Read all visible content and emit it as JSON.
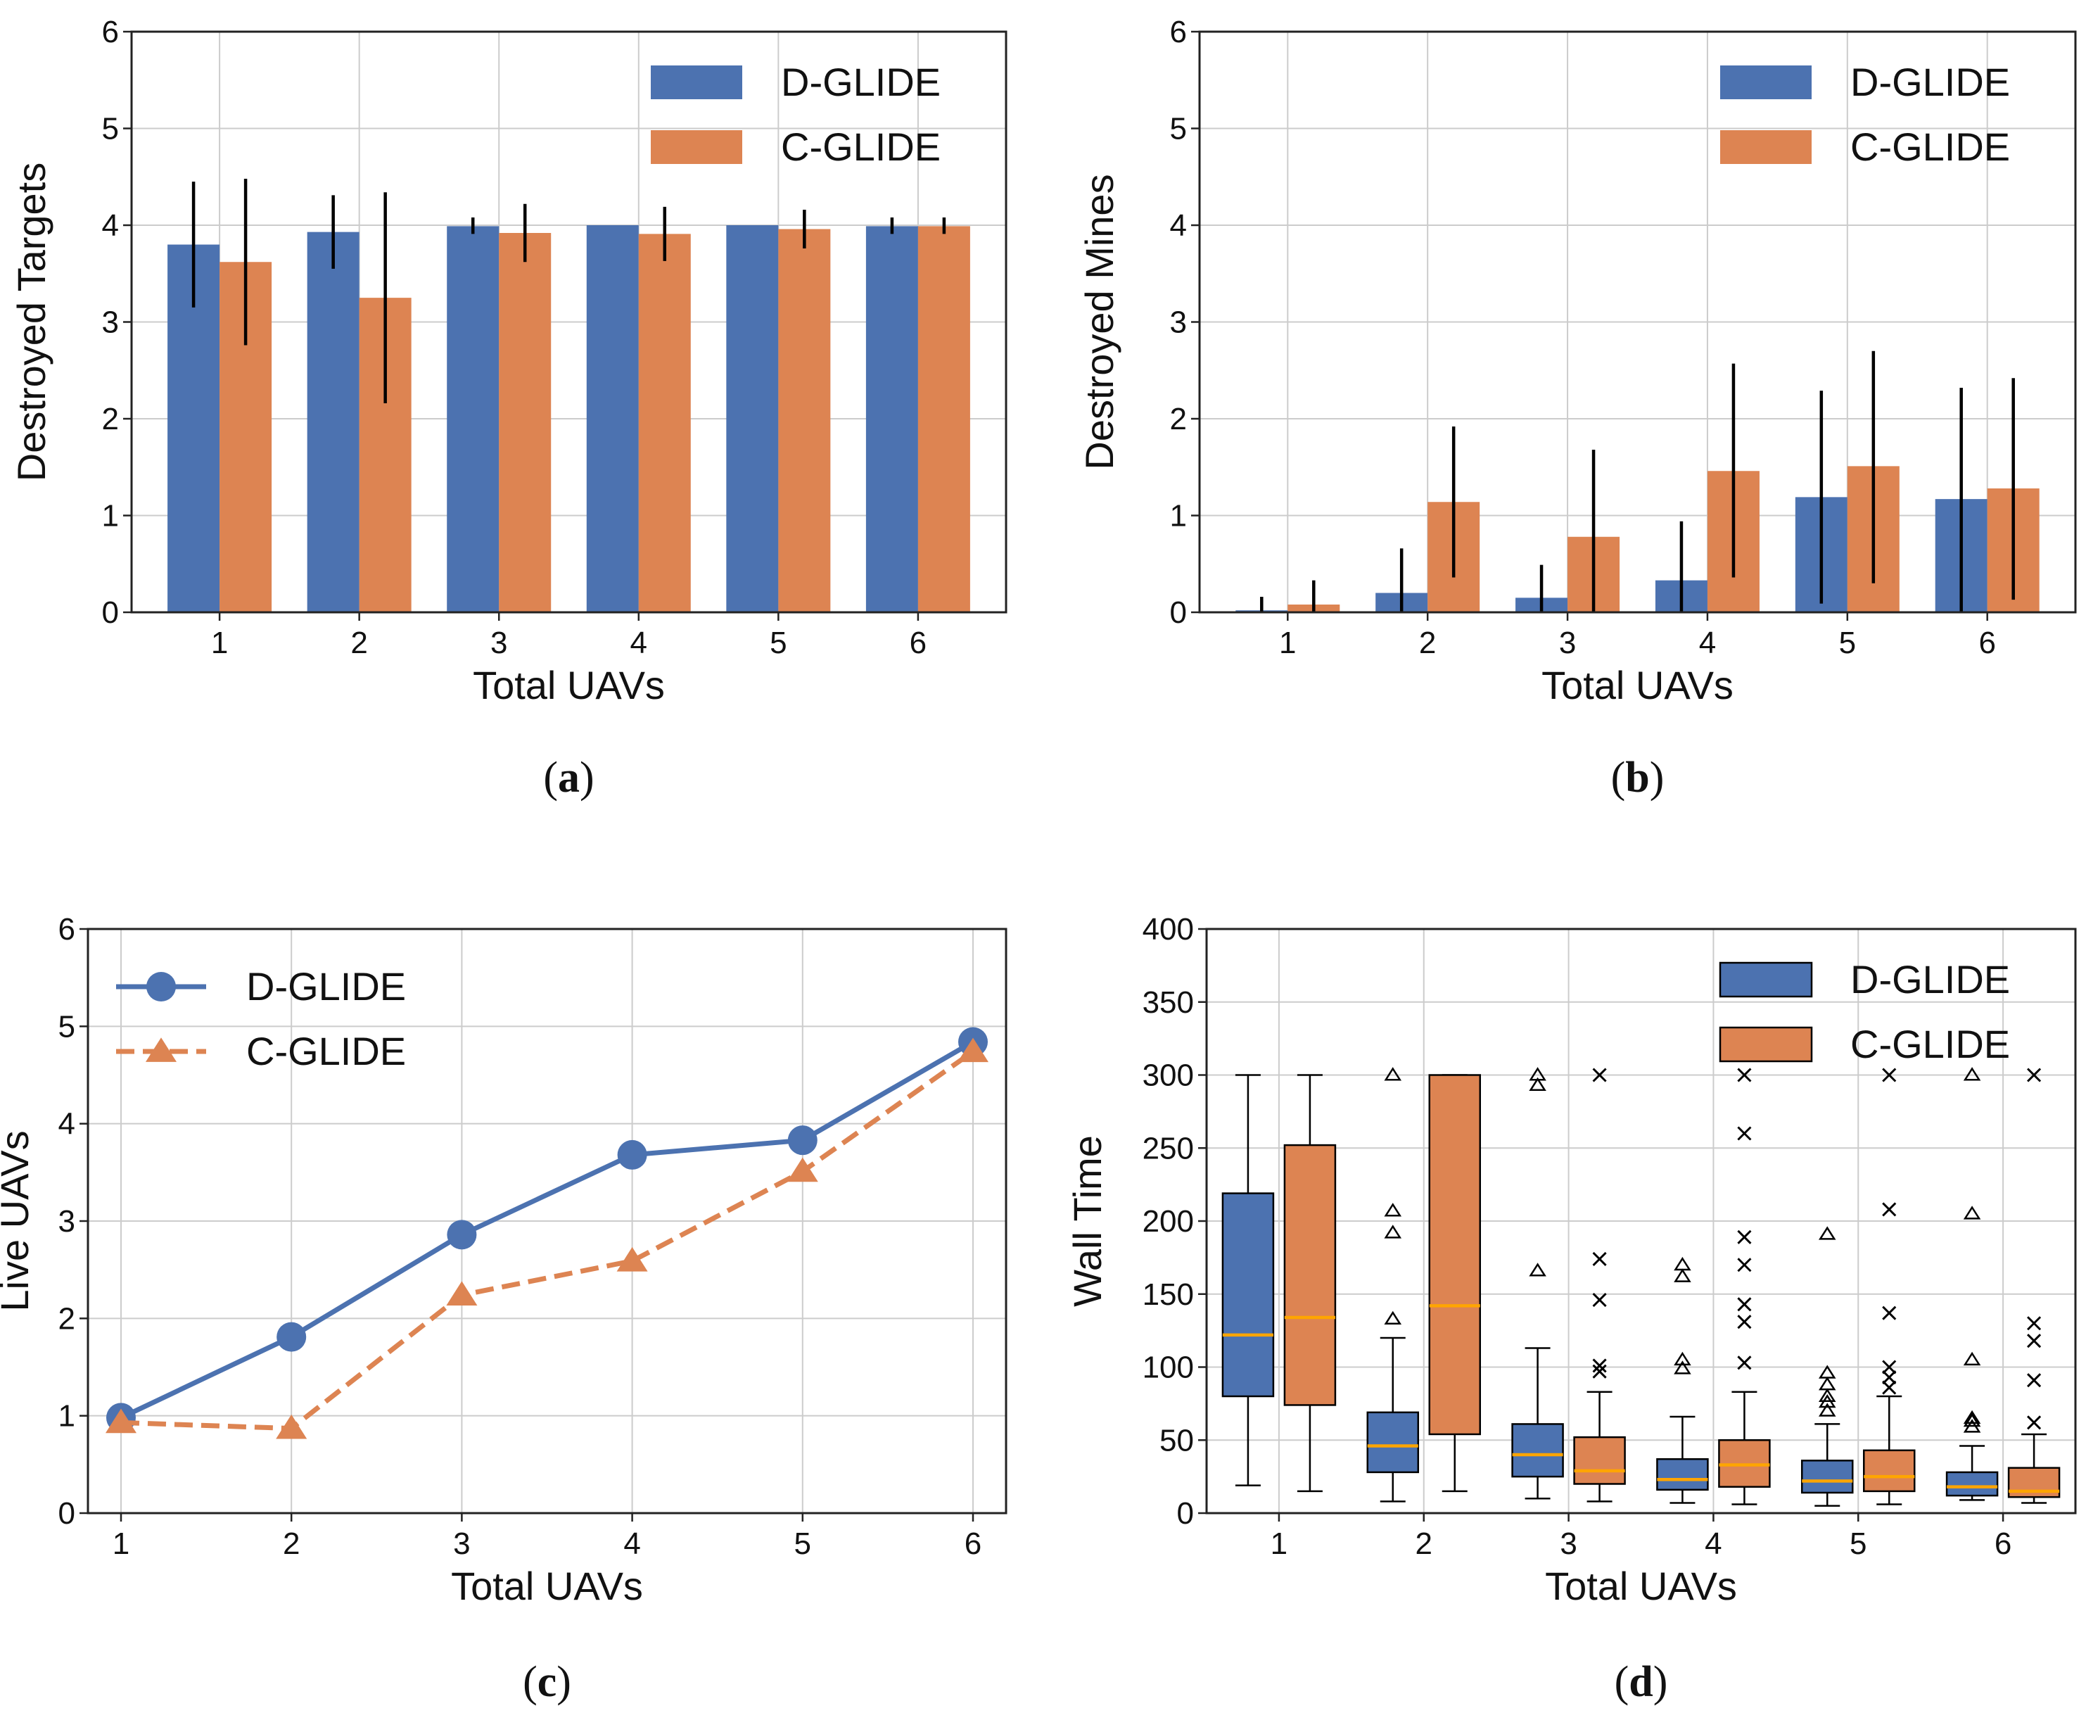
{
  "colors": {
    "dglide": "#4c72b0",
    "cglide": "#dd8452",
    "median": "#ffa500",
    "grid": "#cccccc",
    "axis": "#222222",
    "errorbar": "#000000"
  },
  "chart_data": [
    {
      "id": "a",
      "type": "bar",
      "caption": "a",
      "xlabel": "Total UAVs",
      "ylabel": "Destroyed Targets",
      "categories": [
        "1",
        "2",
        "3",
        "4",
        "5",
        "6"
      ],
      "ylim": [
        0,
        6
      ],
      "yticks": [
        "0",
        "1",
        "2",
        "3",
        "4",
        "5",
        "6"
      ],
      "grid": true,
      "legend": "top-right",
      "series": [
        {
          "name": "D-GLIDE",
          "values": [
            3.8,
            3.93,
            3.99,
            4.0,
            4.0,
            3.99
          ],
          "err_low": [
            3.15,
            3.55,
            3.91,
            4.0,
            4.0,
            3.91
          ],
          "err_high": [
            4.45,
            4.31,
            4.08,
            4.0,
            4.0,
            4.08
          ]
        },
        {
          "name": "C-GLIDE",
          "values": [
            3.62,
            3.25,
            3.92,
            3.91,
            3.96,
            3.99
          ],
          "err_low": [
            2.76,
            2.16,
            3.62,
            3.63,
            3.76,
            3.91
          ],
          "err_high": [
            4.48,
            4.34,
            4.22,
            4.19,
            4.16,
            4.08
          ]
        }
      ]
    },
    {
      "id": "b",
      "type": "bar",
      "caption": "b",
      "xlabel": "Total UAVs",
      "ylabel": "Destroyed Mines",
      "categories": [
        "1",
        "2",
        "3",
        "4",
        "5",
        "6"
      ],
      "ylim": [
        0,
        6
      ],
      "yticks": [
        "0",
        "1",
        "2",
        "3",
        "4",
        "5",
        "6"
      ],
      "grid": true,
      "legend": "top-right",
      "series": [
        {
          "name": "D-GLIDE",
          "values": [
            0.02,
            0.2,
            0.15,
            0.33,
            1.19,
            1.17
          ],
          "err_low": [
            0.0,
            0.0,
            0.0,
            0.0,
            0.09,
            0.0
          ],
          "err_high": [
            0.16,
            0.66,
            0.49,
            0.94,
            2.29,
            2.32
          ]
        },
        {
          "name": "C-GLIDE",
          "values": [
            0.08,
            1.14,
            0.78,
            1.46,
            1.51,
            1.28
          ],
          "err_low": [
            0.0,
            0.36,
            0.0,
            0.36,
            0.3,
            0.13
          ],
          "err_high": [
            0.33,
            1.92,
            1.68,
            2.57,
            2.7,
            2.42
          ]
        }
      ]
    },
    {
      "id": "c",
      "type": "line",
      "caption": "c",
      "xlabel": "Total UAVs",
      "ylabel": "Live UAVs",
      "x": [
        1,
        2,
        3,
        4,
        5,
        6
      ],
      "categories": [
        "1",
        "2",
        "3",
        "4",
        "5",
        "6"
      ],
      "ylim": [
        0,
        6
      ],
      "yticks": [
        "0",
        "1",
        "2",
        "3",
        "4",
        "5",
        "6"
      ],
      "grid": true,
      "legend": "top-left",
      "series": [
        {
          "name": "D-GLIDE",
          "marker": "circle",
          "linestyle": "solid",
          "values": [
            0.98,
            1.81,
            2.86,
            3.68,
            3.83,
            4.84
          ]
        },
        {
          "name": "C-GLIDE",
          "marker": "triangle",
          "linestyle": "dashed",
          "values": [
            0.93,
            0.87,
            2.24,
            2.59,
            3.51,
            4.74
          ]
        }
      ]
    },
    {
      "id": "d",
      "type": "box",
      "caption": "d",
      "xlabel": "Total UAVs",
      "ylabel": "Wall Time",
      "categories": [
        "1",
        "2",
        "3",
        "4",
        "5",
        "6"
      ],
      "ylim": [
        0,
        400
      ],
      "yticks": [
        "0",
        "50",
        "100",
        "150",
        "200",
        "250",
        "300",
        "350",
        "400"
      ],
      "grid": true,
      "legend": "top-right",
      "series": [
        {
          "name": "D-GLIDE",
          "flier_marker": "triangle",
          "boxes": [
            {
              "whislo": 19,
              "q1": 80,
              "med": 122,
              "q3": 219,
              "whishi": 300,
              "fliers": []
            },
            {
              "whislo": 8,
              "q1": 28,
              "med": 46,
              "q3": 69,
              "whishi": 120,
              "fliers": [
                133,
                192,
                207,
                300
              ]
            },
            {
              "whislo": 10,
              "q1": 25,
              "med": 40,
              "q3": 61,
              "whishi": 113,
              "fliers": [
                166,
                293,
                300
              ]
            },
            {
              "whislo": 7,
              "q1": 16,
              "med": 23,
              "q3": 37,
              "whishi": 66,
              "fliers": [
                99,
                105,
                162,
                170
              ]
            },
            {
              "whislo": 5,
              "q1": 14,
              "med": 22,
              "q3": 36,
              "whishi": 61,
              "fliers": [
                70,
                76,
                80,
                88,
                96,
                191
              ]
            },
            {
              "whislo": 9,
              "q1": 12,
              "med": 18,
              "q3": 28,
              "whishi": 46,
              "fliers": [
                59,
                63,
                65,
                105,
                205,
                300
              ]
            }
          ]
        },
        {
          "name": "C-GLIDE",
          "flier_marker": "x",
          "boxes": [
            {
              "whislo": 15,
              "q1": 74,
              "med": 134,
              "q3": 252,
              "whishi": 300,
              "fliers": []
            },
            {
              "whislo": 15,
              "q1": 54,
              "med": 142,
              "q3": 300,
              "whishi": 300,
              "fliers": []
            },
            {
              "whislo": 8,
              "q1": 20,
              "med": 29,
              "q3": 52,
              "whishi": 83,
              "fliers": [
                97,
                101,
                146,
                174,
                300
              ]
            },
            {
              "whislo": 6,
              "q1": 18,
              "med": 33,
              "q3": 50,
              "whishi": 83,
              "fliers": [
                103,
                131,
                143,
                170,
                189,
                260,
                300
              ]
            },
            {
              "whislo": 6,
              "q1": 15,
              "med": 25,
              "q3": 43,
              "whishi": 80,
              "fliers": [
                86,
                93,
                100,
                137,
                208,
                300
              ]
            },
            {
              "whislo": 7,
              "q1": 11,
              "med": 15,
              "q3": 31,
              "whishi": 54,
              "fliers": [
                62,
                91,
                118,
                130,
                300
              ]
            }
          ]
        }
      ]
    }
  ]
}
